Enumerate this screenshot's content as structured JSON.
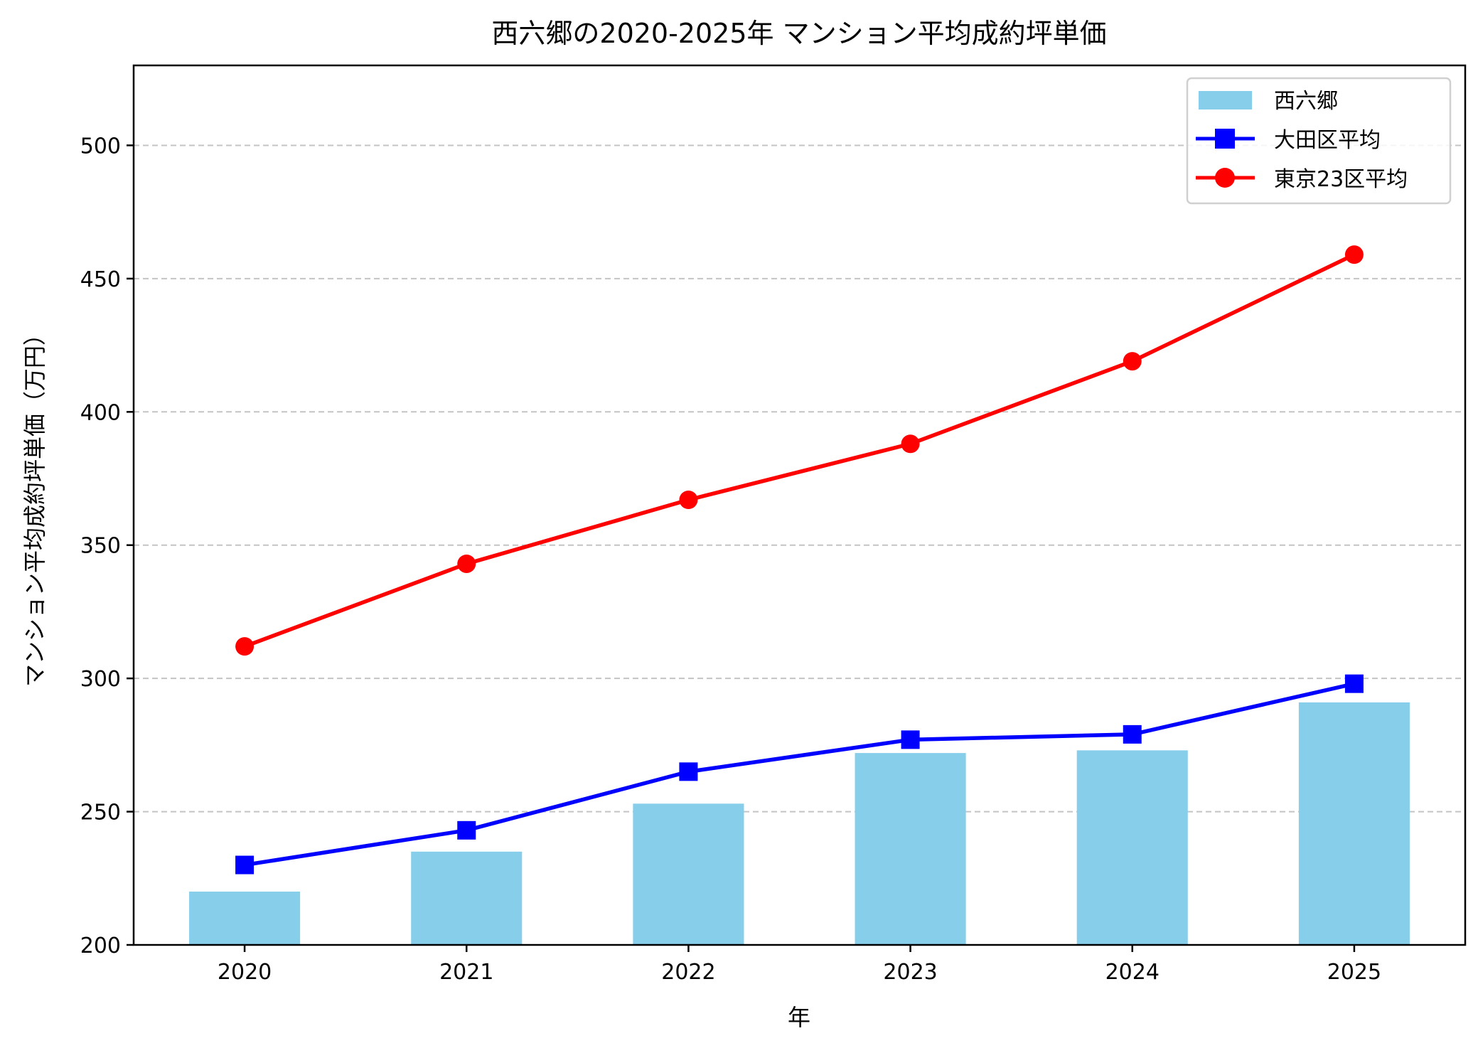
{
  "chart_data": {
    "type": "bar+line",
    "title": "西六郷の2020-2025年 マンション平均成約坪単価",
    "xlabel": "年",
    "ylabel": "マンション平均成約坪単価（万円）",
    "categories": [
      "2020",
      "2021",
      "2022",
      "2023",
      "2024",
      "2025"
    ],
    "ylim": [
      200,
      530
    ],
    "yticks": [
      200,
      250,
      300,
      350,
      400,
      450,
      500
    ],
    "grid": "y-dashed",
    "legend_position": "top-right",
    "series": [
      {
        "name": "西六郷",
        "type": "bar",
        "color": "#87ceeb",
        "values": [
          220,
          235,
          253,
          272,
          273,
          291
        ]
      },
      {
        "name": "大田区平均",
        "type": "line",
        "marker": "square",
        "color": "#0000ff",
        "values": [
          230,
          243,
          265,
          277,
          279,
          298
        ]
      },
      {
        "name": "東京23区平均",
        "type": "line",
        "marker": "circle",
        "color": "#ff0000",
        "values": [
          312,
          343,
          367,
          388,
          419,
          459
        ]
      }
    ]
  }
}
